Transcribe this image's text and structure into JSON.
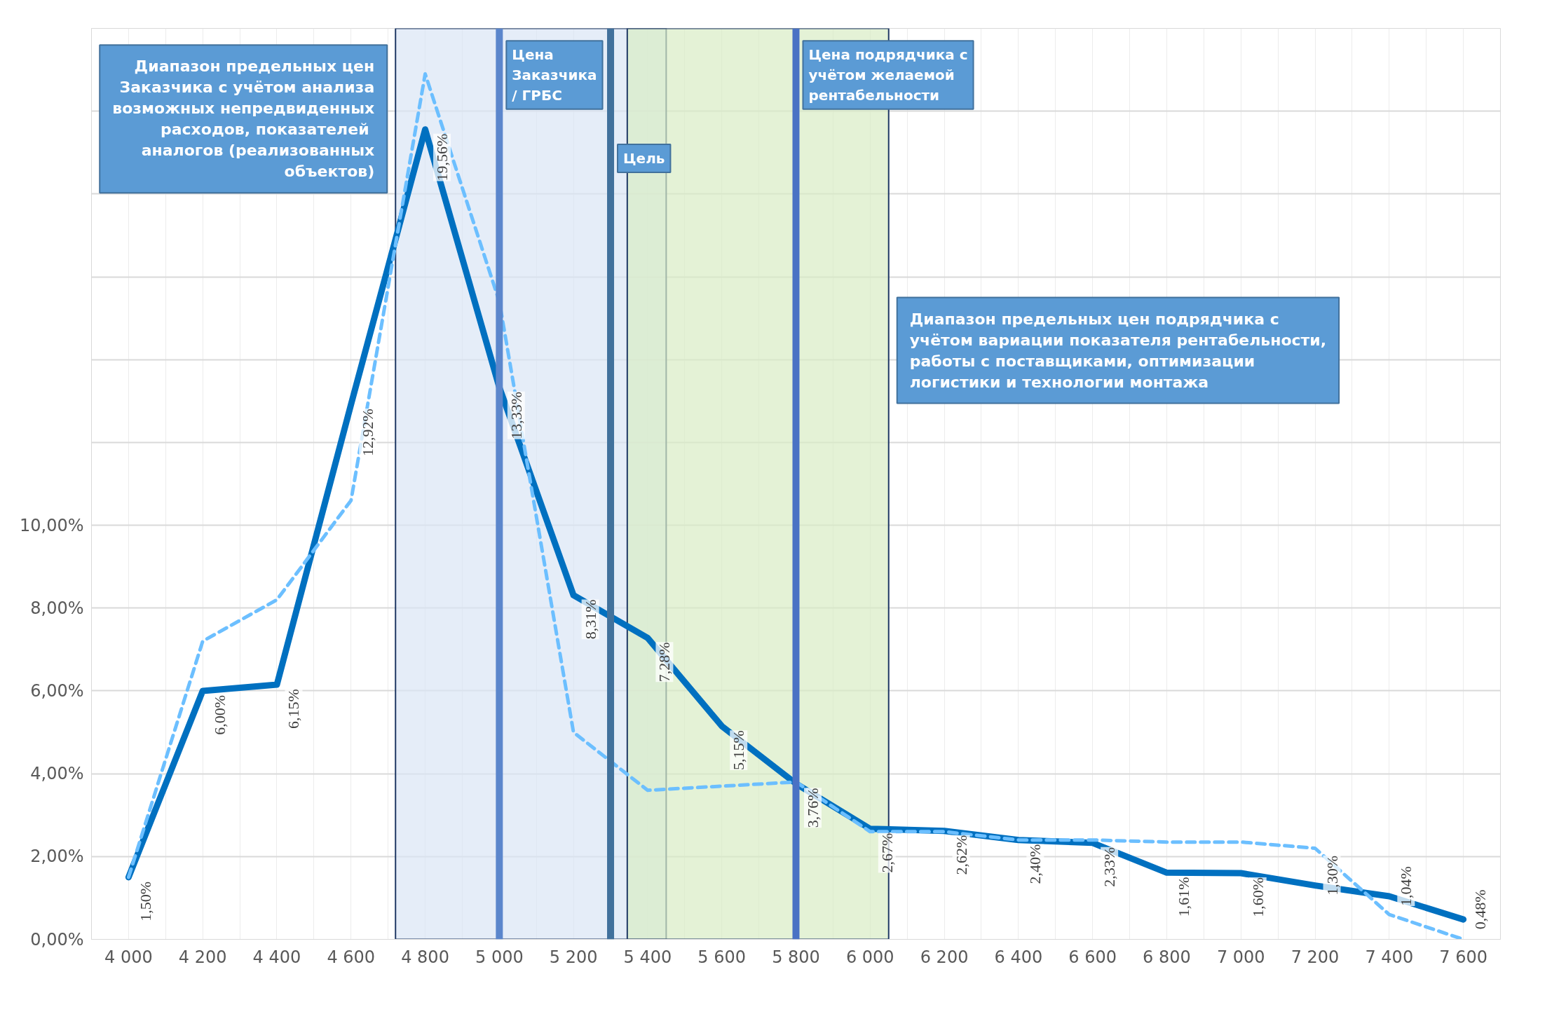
{
  "chart_data": {
    "type": "line",
    "x": [
      4000,
      4200,
      4400,
      4600,
      4800,
      5000,
      5200,
      5400,
      5600,
      5800,
      6000,
      6200,
      6400,
      6600,
      6800,
      7000,
      7200,
      7400,
      7600
    ],
    "series": [
      {
        "color": "#0070c0",
        "line_style": "solid",
        "values": [
          1.5,
          6.0,
          6.15,
          12.92,
          19.56,
          13.33,
          8.31,
          7.28,
          5.15,
          3.76,
          2.67,
          2.62,
          2.4,
          2.33,
          1.61,
          1.6,
          1.3,
          1.04,
          0.48
        ],
        "value_labels": [
          "1,50%",
          "6,00%",
          "6,15%",
          "12,92%",
          "19,56%",
          "13,33%",
          "8,31%",
          "7,28%",
          "5,15%",
          "3,76%",
          "2,67%",
          "2,62%",
          "2,40%",
          "2,33%",
          "1,61%",
          "1,60%",
          "1,30%",
          "1,04%",
          "0,48%"
        ]
      },
      {
        "color": "#6cbfff",
        "line_style": "dashed",
        "values": [
          1.5,
          7.2,
          8.2,
          10.6,
          20.9,
          15.4,
          5.0,
          3.6,
          3.7,
          3.8,
          2.6,
          2.6,
          2.4,
          2.4,
          2.35,
          2.35,
          2.2,
          0.6,
          0.0
        ]
      }
    ],
    "xlim": [
      3900,
      7700
    ],
    "ylim": [
      0,
      22
    ],
    "xticks": [
      {
        "value": 4000,
        "label": "4 000"
      },
      {
        "value": 4100,
        "label": null
      },
      {
        "value": 4200,
        "label": "4 200"
      },
      {
        "value": 4300,
        "label": null
      },
      {
        "value": 4400,
        "label": "4 400"
      },
      {
        "value": 4500,
        "label": null
      },
      {
        "value": 4600,
        "label": "4 600"
      },
      {
        "value": 4700,
        "label": null
      },
      {
        "value": 4800,
        "label": "4 800"
      },
      {
        "value": 4900,
        "label": null
      },
      {
        "value": 5000,
        "label": "5 000"
      },
      {
        "value": 5100,
        "label": null
      },
      {
        "value": 5200,
        "label": "5 200"
      },
      {
        "value": 5300,
        "label": null
      },
      {
        "value": 5400,
        "label": "5 400"
      },
      {
        "value": 5500,
        "label": null
      },
      {
        "value": 5600,
        "label": "5 600"
      },
      {
        "value": 5700,
        "label": null
      },
      {
        "value": 5800,
        "label": "5 800"
      },
      {
        "value": 5900,
        "label": null
      },
      {
        "value": 6000,
        "label": "6 000"
      },
      {
        "value": 6100,
        "label": null
      },
      {
        "value": 6200,
        "label": "6 200"
      },
      {
        "value": 6300,
        "label": null
      },
      {
        "value": 6400,
        "label": "6 400"
      },
      {
        "value": 6500,
        "label": null
      },
      {
        "value": 6600,
        "label": "6 600"
      },
      {
        "value": 6700,
        "label": null
      },
      {
        "value": 6800,
        "label": "6 800"
      },
      {
        "value": 6900,
        "label": null
      },
      {
        "value": 7000,
        "label": "7 000"
      },
      {
        "value": 7100,
        "label": null
      },
      {
        "value": 7200,
        "label": "7 200"
      },
      {
        "value": 7300,
        "label": null
      },
      {
        "value": 7400,
        "label": "7 400"
      },
      {
        "value": 7500,
        "label": null
      },
      {
        "value": 7600,
        "label": "7 600"
      }
    ],
    "yticks": [
      {
        "value": 0,
        "label": "0,00%"
      },
      {
        "value": 2,
        "label": "2,00%"
      },
      {
        "value": 4,
        "label": "4,00%"
      },
      {
        "value": 6,
        "label": "6,00%"
      },
      {
        "value": 8,
        "label": "8,00%"
      },
      {
        "value": 10,
        "label": "10,00%"
      },
      {
        "value": 12,
        "label": null
      },
      {
        "value": 14,
        "label": null
      },
      {
        "value": 16,
        "label": null
      },
      {
        "value": 18,
        "label": null
      },
      {
        "value": 20,
        "label": null
      },
      {
        "value": 22,
        "label": null
      }
    ],
    "grid": true,
    "bands": [
      {
        "axis": "x",
        "from": 4720,
        "to": 5450,
        "color": "#dae6f5",
        "label": "Диапазон предельных цен Заказчика с учётом анализа возможных непредвиденных расходов,  показателей аналогов (реализованных объектов)"
      },
      {
        "axis": "x",
        "from": 5345,
        "to": 6050,
        "color": "#d9ecc4",
        "label": "Диапазон предельных цен подрядчика с учётом вариации показателя рентабельности, работы с поставщиками, оптимизации логистики и технологии монтажа"
      }
    ],
    "ref_lines": [
      {
        "axis": "x",
        "value": 5000,
        "color": "#5b86cc",
        "label": "Цена Заказчика / ГРБС"
      },
      {
        "axis": "x",
        "value": 5300,
        "color": "#41719c",
        "label": "Цель"
      },
      {
        "axis": "x",
        "value": 5800,
        "color": "#4a72c4",
        "label": "Цена подрядчика с учётом желаемой рентабельности"
      }
    ]
  }
}
